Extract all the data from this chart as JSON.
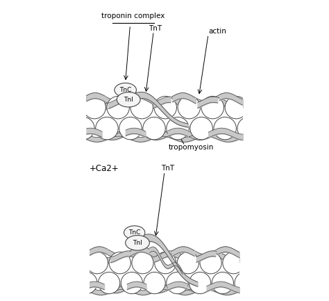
{
  "background_color": "#ffffff",
  "line_color": "#444444",
  "gray_fill": "#c8c8c8",
  "circle_edge": "#444444",
  "circle_face": "#ffffff",
  "fig_width": 4.74,
  "fig_height": 4.33,
  "dpi": 100,
  "labels": {
    "troponin_complex": "troponin complex",
    "TnT_top": "TnT",
    "TnC_top": "TnC",
    "TnI_top": "TnI",
    "actin": "actin",
    "tropomyosin": "tropomyosin",
    "ca2": "+Ca2+",
    "TnT_bot": "TnT",
    "TnC_bot": "TnC",
    "TnI_bot": "TnI"
  }
}
